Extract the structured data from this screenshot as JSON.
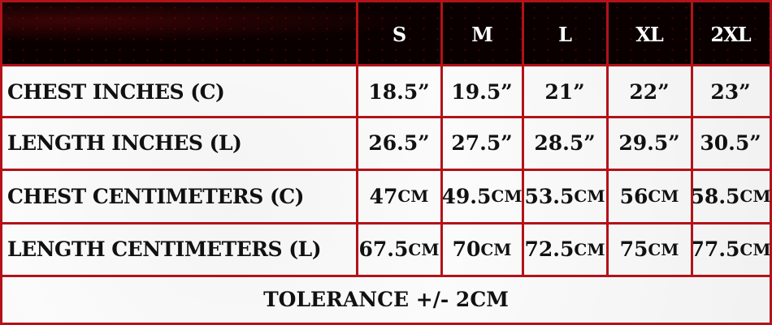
{
  "chart_data": {
    "type": "table",
    "columns": [
      "S",
      "M",
      "L",
      "XL",
      "2XL"
    ],
    "rows": [
      {
        "label": "CHEST INCHES (C)",
        "values": [
          "18.5”",
          "19.5”",
          "21”",
          "22”",
          "23”"
        ]
      },
      {
        "label": "LENGTH INCHES (L)",
        "values": [
          "26.5”",
          "27.5”",
          "28.5”",
          "29.5”",
          "30.5”"
        ]
      },
      {
        "label": "CHEST CENTIMETERS (C)",
        "values": [
          "47cm",
          "49.5cm",
          "53.5cm",
          "56cm",
          "58.5cm"
        ]
      },
      {
        "label": "LENGTH CENTIMETERS (L)",
        "values": [
          "67.5cm",
          "70cm",
          "72.5cm",
          "75cm",
          "77.5cm"
        ]
      }
    ],
    "footer": "TOLERANCE +/- 2CM",
    "colors": {
      "grid": "#b3121a",
      "header_bg": "#050000",
      "header_text": "#ffffff"
    }
  }
}
